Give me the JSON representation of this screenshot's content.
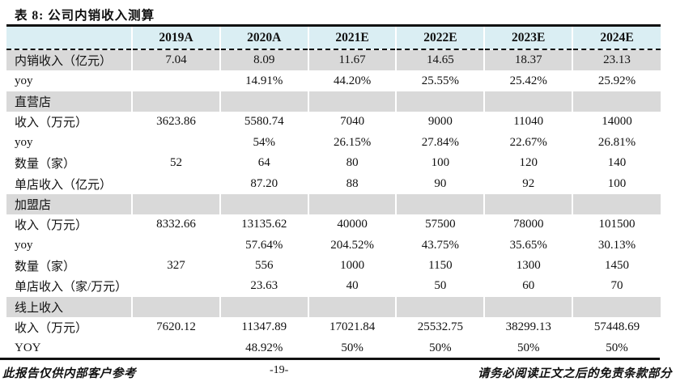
{
  "title": "表 8: 公司内销收入测算",
  "table": {
    "columns": [
      "",
      "2019A",
      "2020A",
      "2021E",
      "2022E",
      "2023E",
      "2024E"
    ],
    "rows": [
      {
        "label": "内销收入（亿元）",
        "shaded": true,
        "section": false,
        "values": [
          "7.04",
          "8.09",
          "11.67",
          "14.65",
          "18.37",
          "23.13"
        ]
      },
      {
        "label": "yoy",
        "shaded": false,
        "section": false,
        "values": [
          "",
          "14.91%",
          "44.20%",
          "25.55%",
          "25.42%",
          "25.92%"
        ]
      },
      {
        "label": "直营店",
        "shaded": true,
        "section": true,
        "values": [
          "",
          "",
          "",
          "",
          "",
          ""
        ]
      },
      {
        "label": "收入（万元）",
        "shaded": false,
        "section": false,
        "values": [
          "3623.86",
          "5580.74",
          "7040",
          "9000",
          "11040",
          "14000"
        ]
      },
      {
        "label": "yoy",
        "shaded": false,
        "section": false,
        "values": [
          "",
          "54%",
          "26.15%",
          "27.84%",
          "22.67%",
          "26.81%"
        ]
      },
      {
        "label": "数量（家）",
        "shaded": false,
        "section": false,
        "values": [
          "52",
          "64",
          "80",
          "100",
          "120",
          "140"
        ]
      },
      {
        "label": "单店收入（亿元）",
        "shaded": false,
        "section": false,
        "values": [
          "",
          "87.20",
          "88",
          "90",
          "92",
          "100"
        ]
      },
      {
        "label": "加盟店",
        "shaded": true,
        "section": true,
        "values": [
          "",
          "",
          "",
          "",
          "",
          ""
        ]
      },
      {
        "label": "收入（万元）",
        "shaded": false,
        "section": false,
        "values": [
          "8332.66",
          "13135.62",
          "40000",
          "57500",
          "78000",
          "101500"
        ]
      },
      {
        "label": "yoy",
        "shaded": false,
        "section": false,
        "values": [
          "",
          "57.64%",
          "204.52%",
          "43.75%",
          "35.65%",
          "30.13%"
        ]
      },
      {
        "label": "数量（家）",
        "shaded": false,
        "section": false,
        "values": [
          "327",
          "556",
          "1000",
          "1150",
          "1300",
          "1450"
        ]
      },
      {
        "label": "单店收入（家/万元）",
        "shaded": false,
        "section": false,
        "values": [
          "",
          "23.63",
          "40",
          "50",
          "60",
          "70"
        ]
      },
      {
        "label": "线上收入",
        "shaded": true,
        "section": true,
        "values": [
          "",
          "",
          "",
          "",
          "",
          ""
        ]
      },
      {
        "label": "收入（万元）",
        "shaded": false,
        "section": false,
        "values": [
          "7620.12",
          "11347.89",
          "17021.84",
          "25532.75",
          "38299.13",
          "57448.69"
        ]
      },
      {
        "label": "YOY",
        "shaded": false,
        "section": false,
        "values": [
          "",
          "48.92%",
          "50%",
          "50%",
          "50%",
          "50%"
        ]
      }
    ]
  },
  "footer": {
    "left": "此报告仅供内部客户参考",
    "center": "-19-",
    "right": "请务必阅读正文之后的免责条款部分"
  },
  "colors": {
    "header_bg": "#DAEEF3",
    "shaded_row_bg": "#D9D9D9",
    "border": "#111111"
  }
}
